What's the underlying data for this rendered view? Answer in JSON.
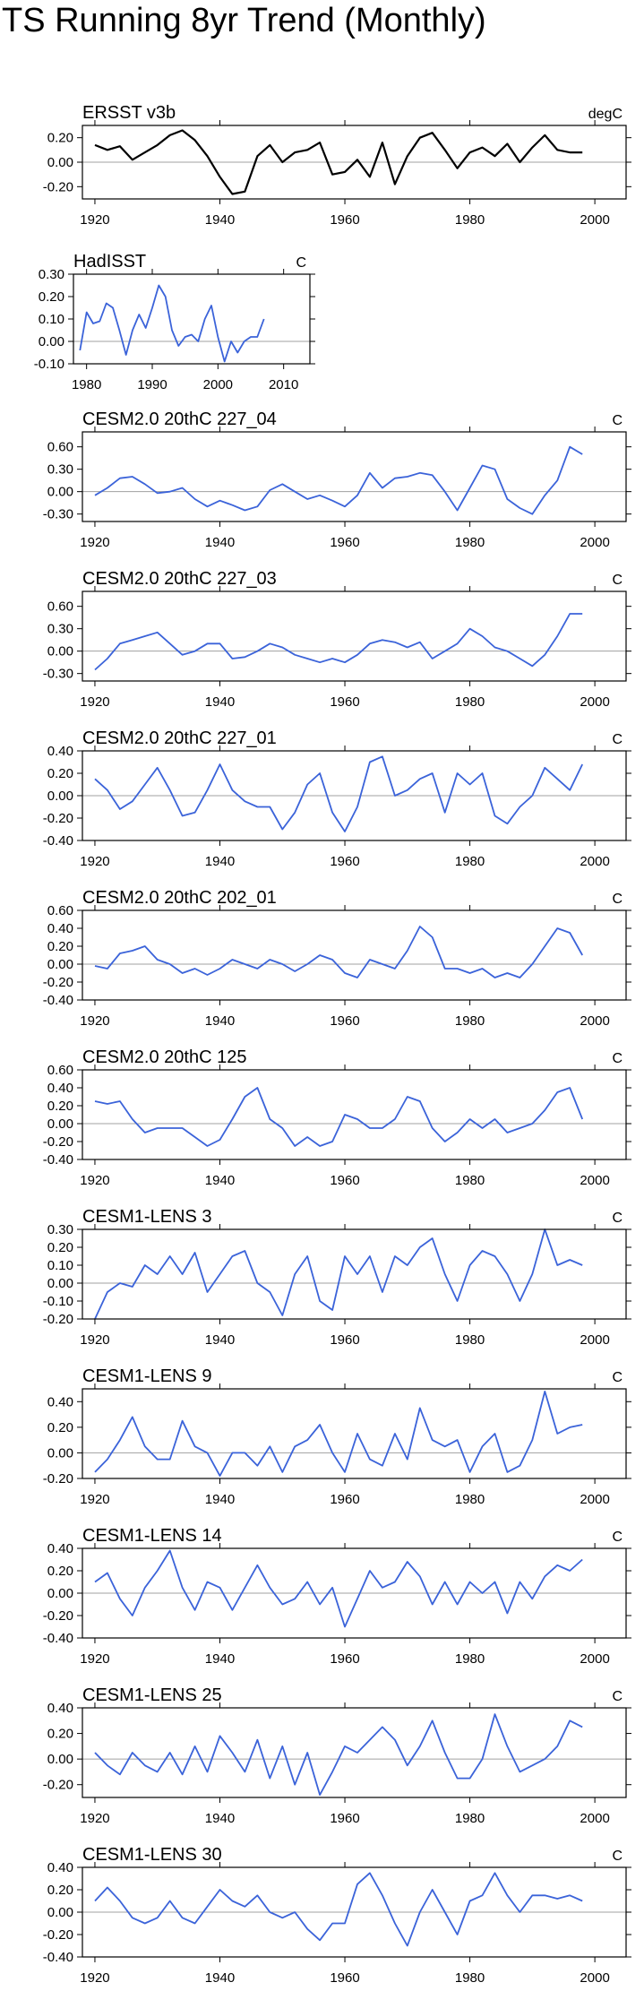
{
  "title": "TS Running 8yr Trend (Monthly)",
  "colors": {
    "observed_line": "#000000",
    "model_line": "#3b63d9",
    "axis": "#000000",
    "zero_line": "#a0a0a0"
  },
  "chart_data": [
    {
      "type": "line",
      "title": "ERSST v3b",
      "units": "degC",
      "xlim": [
        1918,
        2005
      ],
      "ylim": [
        -0.3,
        0.3
      ],
      "xticks": [
        1920,
        1940,
        1960,
        1980,
        2000
      ],
      "yticks": [
        -0.2,
        0.0,
        0.2
      ],
      "ytick_labels": [
        "-0.20",
        "0.00",
        "0.20"
      ],
      "x": [
        1920,
        1922,
        1924,
        1926,
        1928,
        1930,
        1932,
        1934,
        1936,
        1938,
        1940,
        1942,
        1944,
        1946,
        1948,
        1950,
        1952,
        1954,
        1956,
        1958,
        1960,
        1962,
        1964,
        1966,
        1968,
        1970,
        1972,
        1974,
        1976,
        1978,
        1980,
        1982,
        1984,
        1986,
        1988,
        1990,
        1992,
        1994,
        1996,
        1998
      ],
      "values": [
        0.14,
        0.1,
        0.13,
        0.02,
        0.08,
        0.14,
        0.22,
        0.26,
        0.18,
        0.05,
        -0.12,
        -0.26,
        -0.24,
        0.05,
        0.14,
        0.0,
        0.08,
        0.1,
        0.16,
        -0.1,
        -0.08,
        0.02,
        -0.12,
        0.16,
        -0.18,
        0.05,
        0.2,
        0.24,
        0.1,
        -0.05,
        0.08,
        0.12,
        0.05,
        0.15,
        0.0,
        0.12,
        0.22,
        0.1,
        0.08,
        0.08
      ]
    },
    {
      "type": "line",
      "title": "HadISST",
      "units": "C",
      "xlim": [
        1978,
        2014
      ],
      "ylim": [
        -0.1,
        0.3
      ],
      "xticks": [
        1980,
        1990,
        2000,
        2010
      ],
      "yticks": [
        -0.1,
        0.0,
        0.1,
        0.2,
        0.3
      ],
      "ytick_labels": [
        "-0.10",
        "0.00",
        "0.10",
        "0.20",
        "0.30"
      ],
      "x": [
        1979,
        1980,
        1981,
        1982,
        1983,
        1984,
        1985,
        1986,
        1987,
        1988,
        1989,
        1990,
        1991,
        1992,
        1993,
        1994,
        1995,
        1996,
        1997,
        1998,
        1999,
        2000,
        2001,
        2002,
        2003,
        2004,
        2005,
        2006,
        2007
      ],
      "values": [
        -0.04,
        0.13,
        0.08,
        0.09,
        0.17,
        0.15,
        0.05,
        -0.06,
        0.05,
        0.12,
        0.06,
        0.15,
        0.25,
        0.2,
        0.05,
        -0.02,
        0.02,
        0.03,
        0.0,
        0.1,
        0.16,
        0.02,
        -0.09,
        0.0,
        -0.05,
        0.0,
        0.02,
        0.02,
        0.1
      ]
    },
    {
      "type": "line",
      "title": "CESM2.0 20thC 227_04",
      "units": "C",
      "xlim": [
        1918,
        2005
      ],
      "ylim": [
        -0.4,
        0.8
      ],
      "xticks": [
        1920,
        1940,
        1960,
        1980,
        2000
      ],
      "yticks": [
        -0.3,
        0.0,
        0.3,
        0.6
      ],
      "ytick_labels": [
        "-0.30",
        "0.00",
        "0.30",
        "0.60"
      ],
      "x": [
        1920,
        1922,
        1924,
        1926,
        1928,
        1930,
        1932,
        1934,
        1936,
        1938,
        1940,
        1942,
        1944,
        1946,
        1948,
        1950,
        1952,
        1954,
        1956,
        1958,
        1960,
        1962,
        1964,
        1966,
        1968,
        1970,
        1972,
        1974,
        1976,
        1978,
        1980,
        1982,
        1984,
        1986,
        1988,
        1990,
        1992,
        1994,
        1996,
        1998
      ],
      "values": [
        -0.05,
        0.05,
        0.18,
        0.2,
        0.1,
        -0.02,
        0.0,
        0.05,
        -0.1,
        -0.2,
        -0.12,
        -0.18,
        -0.25,
        -0.2,
        0.02,
        0.1,
        0.0,
        -0.1,
        -0.05,
        -0.12,
        -0.2,
        -0.05,
        0.25,
        0.05,
        0.18,
        0.2,
        0.25,
        0.22,
        0.0,
        -0.25,
        0.05,
        0.35,
        0.3,
        -0.1,
        -0.22,
        -0.3,
        -0.05,
        0.15,
        0.6,
        0.5
      ]
    },
    {
      "type": "line",
      "title": "CESM2.0 20thC 227_03",
      "units": "C",
      "xlim": [
        1918,
        2005
      ],
      "ylim": [
        -0.4,
        0.8
      ],
      "xticks": [
        1920,
        1940,
        1960,
        1980,
        2000
      ],
      "yticks": [
        -0.3,
        0.0,
        0.3,
        0.6
      ],
      "ytick_labels": [
        "-0.30",
        "0.00",
        "0.30",
        "0.60"
      ],
      "x": [
        1920,
        1922,
        1924,
        1926,
        1928,
        1930,
        1932,
        1934,
        1936,
        1938,
        1940,
        1942,
        1944,
        1946,
        1948,
        1950,
        1952,
        1954,
        1956,
        1958,
        1960,
        1962,
        1964,
        1966,
        1968,
        1970,
        1972,
        1974,
        1976,
        1978,
        1980,
        1982,
        1984,
        1986,
        1988,
        1990,
        1992,
        1994,
        1996,
        1998
      ],
      "values": [
        -0.25,
        -0.1,
        0.1,
        0.15,
        0.2,
        0.25,
        0.1,
        -0.05,
        0.0,
        0.1,
        0.1,
        -0.1,
        -0.08,
        0.0,
        0.1,
        0.05,
        -0.05,
        -0.1,
        -0.15,
        -0.1,
        -0.15,
        -0.05,
        0.1,
        0.15,
        0.12,
        0.05,
        0.12,
        -0.1,
        0.0,
        0.1,
        0.3,
        0.2,
        0.05,
        0.0,
        -0.1,
        -0.2,
        -0.05,
        0.2,
        0.5,
        0.5
      ]
    },
    {
      "type": "line",
      "title": "CESM2.0 20thC 227_01",
      "units": "C",
      "xlim": [
        1918,
        2005
      ],
      "ylim": [
        -0.4,
        0.4
      ],
      "xticks": [
        1920,
        1940,
        1960,
        1980,
        2000
      ],
      "yticks": [
        -0.4,
        -0.2,
        0.0,
        0.2,
        0.4
      ],
      "ytick_labels": [
        "-0.40",
        "-0.20",
        "0.00",
        "0.20",
        "0.40"
      ],
      "x": [
        1920,
        1922,
        1924,
        1926,
        1928,
        1930,
        1932,
        1934,
        1936,
        1938,
        1940,
        1942,
        1944,
        1946,
        1948,
        1950,
        1952,
        1954,
        1956,
        1958,
        1960,
        1962,
        1964,
        1966,
        1968,
        1970,
        1972,
        1974,
        1976,
        1978,
        1980,
        1982,
        1984,
        1986,
        1988,
        1990,
        1992,
        1994,
        1996,
        1998
      ],
      "values": [
        0.15,
        0.05,
        -0.12,
        -0.05,
        0.1,
        0.25,
        0.05,
        -0.18,
        -0.15,
        0.05,
        0.28,
        0.05,
        -0.05,
        -0.1,
        -0.1,
        -0.3,
        -0.15,
        0.1,
        0.2,
        -0.15,
        -0.32,
        -0.1,
        0.3,
        0.35,
        0.0,
        0.05,
        0.15,
        0.2,
        -0.15,
        0.2,
        0.1,
        0.2,
        -0.18,
        -0.25,
        -0.1,
        0.0,
        0.25,
        0.15,
        0.05,
        0.28
      ]
    },
    {
      "type": "line",
      "title": "CESM2.0 20thC 202_01",
      "units": "C",
      "xlim": [
        1918,
        2005
      ],
      "ylim": [
        -0.4,
        0.6
      ],
      "xticks": [
        1920,
        1940,
        1960,
        1980,
        2000
      ],
      "yticks": [
        -0.4,
        -0.2,
        0.0,
        0.2,
        0.4,
        0.6
      ],
      "ytick_labels": [
        "-0.40",
        "-0.20",
        "0.00",
        "0.20",
        "0.40",
        "0.60"
      ],
      "x": [
        1920,
        1922,
        1924,
        1926,
        1928,
        1930,
        1932,
        1934,
        1936,
        1938,
        1940,
        1942,
        1944,
        1946,
        1948,
        1950,
        1952,
        1954,
        1956,
        1958,
        1960,
        1962,
        1964,
        1966,
        1968,
        1970,
        1972,
        1974,
        1976,
        1978,
        1980,
        1982,
        1984,
        1986,
        1988,
        1990,
        1992,
        1994,
        1996,
        1998
      ],
      "values": [
        -0.02,
        -0.05,
        0.12,
        0.15,
        0.2,
        0.05,
        0.0,
        -0.1,
        -0.05,
        -0.12,
        -0.05,
        0.05,
        0.0,
        -0.05,
        0.05,
        0.0,
        -0.08,
        0.0,
        0.1,
        0.05,
        -0.1,
        -0.15,
        0.05,
        0.0,
        -0.05,
        0.15,
        0.42,
        0.3,
        -0.05,
        -0.05,
        -0.1,
        -0.05,
        -0.15,
        -0.1,
        -0.15,
        0.0,
        0.2,
        0.4,
        0.35,
        0.1
      ]
    },
    {
      "type": "line",
      "title": "CESM2.0 20thC 125",
      "units": "C",
      "xlim": [
        1918,
        2005
      ],
      "ylim": [
        -0.4,
        0.6
      ],
      "xticks": [
        1920,
        1940,
        1960,
        1980,
        2000
      ],
      "yticks": [
        -0.4,
        -0.2,
        0.0,
        0.2,
        0.4,
        0.6
      ],
      "ytick_labels": [
        "-0.40",
        "-0.20",
        "0.00",
        "0.20",
        "0.40",
        "0.60"
      ],
      "x": [
        1920,
        1922,
        1924,
        1926,
        1928,
        1930,
        1932,
        1934,
        1936,
        1938,
        1940,
        1942,
        1944,
        1946,
        1948,
        1950,
        1952,
        1954,
        1956,
        1958,
        1960,
        1962,
        1964,
        1966,
        1968,
        1970,
        1972,
        1974,
        1976,
        1978,
        1980,
        1982,
        1984,
        1986,
        1988,
        1990,
        1992,
        1994,
        1996,
        1998
      ],
      "values": [
        0.25,
        0.22,
        0.25,
        0.05,
        -0.1,
        -0.05,
        -0.05,
        -0.05,
        -0.15,
        -0.25,
        -0.18,
        0.05,
        0.3,
        0.4,
        0.05,
        -0.05,
        -0.25,
        -0.15,
        -0.25,
        -0.2,
        0.1,
        0.05,
        -0.05,
        -0.05,
        0.05,
        0.3,
        0.25,
        -0.05,
        -0.2,
        -0.1,
        0.05,
        -0.05,
        0.05,
        -0.1,
        -0.05,
        0.0,
        0.15,
        0.35,
        0.4,
        0.05
      ]
    },
    {
      "type": "line",
      "title": "CESM1-LENS 3",
      "units": "C",
      "xlim": [
        1918,
        2005
      ],
      "ylim": [
        -0.2,
        0.3
      ],
      "xticks": [
        1920,
        1940,
        1960,
        1980,
        2000
      ],
      "yticks": [
        -0.2,
        -0.1,
        0.0,
        0.1,
        0.2,
        0.3
      ],
      "ytick_labels": [
        "-0.20",
        "-0.10",
        "0.00",
        "0.10",
        "0.20",
        "0.30"
      ],
      "x": [
        1920,
        1922,
        1924,
        1926,
        1928,
        1930,
        1932,
        1934,
        1936,
        1938,
        1940,
        1942,
        1944,
        1946,
        1948,
        1950,
        1952,
        1954,
        1956,
        1958,
        1960,
        1962,
        1964,
        1966,
        1968,
        1970,
        1972,
        1974,
        1976,
        1978,
        1980,
        1982,
        1984,
        1986,
        1988,
        1990,
        1992,
        1994,
        1996,
        1998
      ],
      "values": [
        -0.2,
        -0.05,
        0.0,
        -0.02,
        0.1,
        0.05,
        0.15,
        0.05,
        0.17,
        -0.05,
        0.05,
        0.15,
        0.18,
        0.0,
        -0.05,
        -0.18,
        0.05,
        0.15,
        -0.1,
        -0.15,
        0.15,
        0.05,
        0.15,
        -0.05,
        0.15,
        0.1,
        0.2,
        0.25,
        0.05,
        -0.1,
        0.1,
        0.18,
        0.15,
        0.05,
        -0.1,
        0.05,
        0.3,
        0.1,
        0.13,
        0.1
      ]
    },
    {
      "type": "line",
      "title": "CESM1-LENS 9",
      "units": "C",
      "xlim": [
        1918,
        2005
      ],
      "ylim": [
        -0.2,
        0.5
      ],
      "xticks": [
        1920,
        1940,
        1960,
        1980,
        2000
      ],
      "yticks": [
        -0.2,
        0.0,
        0.2,
        0.4
      ],
      "ytick_labels": [
        "-0.20",
        "0.00",
        "0.20",
        "0.40"
      ],
      "x": [
        1920,
        1922,
        1924,
        1926,
        1928,
        1930,
        1932,
        1934,
        1936,
        1938,
        1940,
        1942,
        1944,
        1946,
        1948,
        1950,
        1952,
        1954,
        1956,
        1958,
        1960,
        1962,
        1964,
        1966,
        1968,
        1970,
        1972,
        1974,
        1976,
        1978,
        1980,
        1982,
        1984,
        1986,
        1988,
        1990,
        1992,
        1994,
        1996,
        1998
      ],
      "values": [
        -0.15,
        -0.05,
        0.1,
        0.28,
        0.05,
        -0.05,
        -0.05,
        0.25,
        0.05,
        0.0,
        -0.18,
        0.0,
        0.0,
        -0.1,
        0.05,
        -0.15,
        0.05,
        0.1,
        0.22,
        0.0,
        -0.15,
        0.15,
        -0.05,
        -0.1,
        0.15,
        -0.05,
        0.35,
        0.1,
        0.05,
        0.1,
        -0.15,
        0.05,
        0.15,
        -0.15,
        -0.1,
        0.1,
        0.48,
        0.15,
        0.2,
        0.22
      ]
    },
    {
      "type": "line",
      "title": "CESM1-LENS 14",
      "units": "C",
      "xlim": [
        1918,
        2005
      ],
      "ylim": [
        -0.4,
        0.4
      ],
      "xticks": [
        1920,
        1940,
        1960,
        1980,
        2000
      ],
      "yticks": [
        -0.4,
        -0.2,
        0.0,
        0.2,
        0.4
      ],
      "ytick_labels": [
        "-0.40",
        "-0.20",
        "0.00",
        "0.20",
        "0.40"
      ],
      "x": [
        1920,
        1922,
        1924,
        1926,
        1928,
        1930,
        1932,
        1934,
        1936,
        1938,
        1940,
        1942,
        1944,
        1946,
        1948,
        1950,
        1952,
        1954,
        1956,
        1958,
        1960,
        1962,
        1964,
        1966,
        1968,
        1970,
        1972,
        1974,
        1976,
        1978,
        1980,
        1982,
        1984,
        1986,
        1988,
        1990,
        1992,
        1994,
        1996,
        1998
      ],
      "values": [
        0.1,
        0.18,
        -0.05,
        -0.2,
        0.05,
        0.2,
        0.38,
        0.05,
        -0.15,
        0.1,
        0.05,
        -0.15,
        0.05,
        0.25,
        0.05,
        -0.1,
        -0.05,
        0.1,
        -0.1,
        0.05,
        -0.3,
        -0.05,
        0.2,
        0.05,
        0.1,
        0.28,
        0.15,
        -0.1,
        0.1,
        -0.1,
        0.1,
        0.0,
        0.1,
        -0.18,
        0.1,
        -0.05,
        0.15,
        0.25,
        0.2,
        0.3
      ]
    },
    {
      "type": "line",
      "title": "CESM1-LENS 25",
      "units": "C",
      "xlim": [
        1918,
        2005
      ],
      "ylim": [
        -0.3,
        0.4
      ],
      "xticks": [
        1920,
        1940,
        1960,
        1980,
        2000
      ],
      "yticks": [
        -0.2,
        0.0,
        0.2,
        0.4
      ],
      "ytick_labels": [
        "-0.20",
        "0.00",
        "0.20",
        "0.40"
      ],
      "x": [
        1920,
        1922,
        1924,
        1926,
        1928,
        1930,
        1932,
        1934,
        1936,
        1938,
        1940,
        1942,
        1944,
        1946,
        1948,
        1950,
        1952,
        1954,
        1956,
        1958,
        1960,
        1962,
        1964,
        1966,
        1968,
        1970,
        1972,
        1974,
        1976,
        1978,
        1980,
        1982,
        1984,
        1986,
        1988,
        1990,
        1992,
        1994,
        1996,
        1998
      ],
      "values": [
        0.05,
        -0.05,
        -0.12,
        0.05,
        -0.05,
        -0.1,
        0.05,
        -0.12,
        0.1,
        -0.1,
        0.18,
        0.05,
        -0.1,
        0.15,
        -0.15,
        0.1,
        -0.2,
        0.05,
        -0.28,
        -0.1,
        0.1,
        0.05,
        0.15,
        0.25,
        0.15,
        -0.05,
        0.1,
        0.3,
        0.05,
        -0.15,
        -0.15,
        0.0,
        0.35,
        0.1,
        -0.1,
        -0.05,
        0.0,
        0.1,
        0.3,
        0.25
      ]
    },
    {
      "type": "line",
      "title": "CESM1-LENS 30",
      "units": "C",
      "xlim": [
        1918,
        2005
      ],
      "ylim": [
        -0.4,
        0.4
      ],
      "xticks": [
        1920,
        1940,
        1960,
        1980,
        2000
      ],
      "yticks": [
        -0.4,
        -0.2,
        0.0,
        0.2,
        0.4
      ],
      "ytick_labels": [
        "-0.40",
        "-0.20",
        "0.00",
        "0.20",
        "0.40"
      ],
      "x": [
        1920,
        1922,
        1924,
        1926,
        1928,
        1930,
        1932,
        1934,
        1936,
        1938,
        1940,
        1942,
        1944,
        1946,
        1948,
        1950,
        1952,
        1954,
        1956,
        1958,
        1960,
        1962,
        1964,
        1966,
        1968,
        1970,
        1972,
        1974,
        1976,
        1978,
        1980,
        1982,
        1984,
        1986,
        1988,
        1990,
        1992,
        1994,
        1996,
        1998
      ],
      "values": [
        0.1,
        0.22,
        0.1,
        -0.05,
        -0.1,
        -0.05,
        0.1,
        -0.05,
        -0.1,
        0.05,
        0.2,
        0.1,
        0.05,
        0.15,
        0.0,
        -0.05,
        0.0,
        -0.15,
        -0.25,
        -0.1,
        -0.1,
        0.25,
        0.35,
        0.15,
        -0.1,
        -0.3,
        0.0,
        0.2,
        0.0,
        -0.2,
        0.1,
        0.15,
        0.35,
        0.15,
        0.0,
        0.15,
        0.15,
        0.12,
        0.15,
        0.1
      ]
    }
  ]
}
